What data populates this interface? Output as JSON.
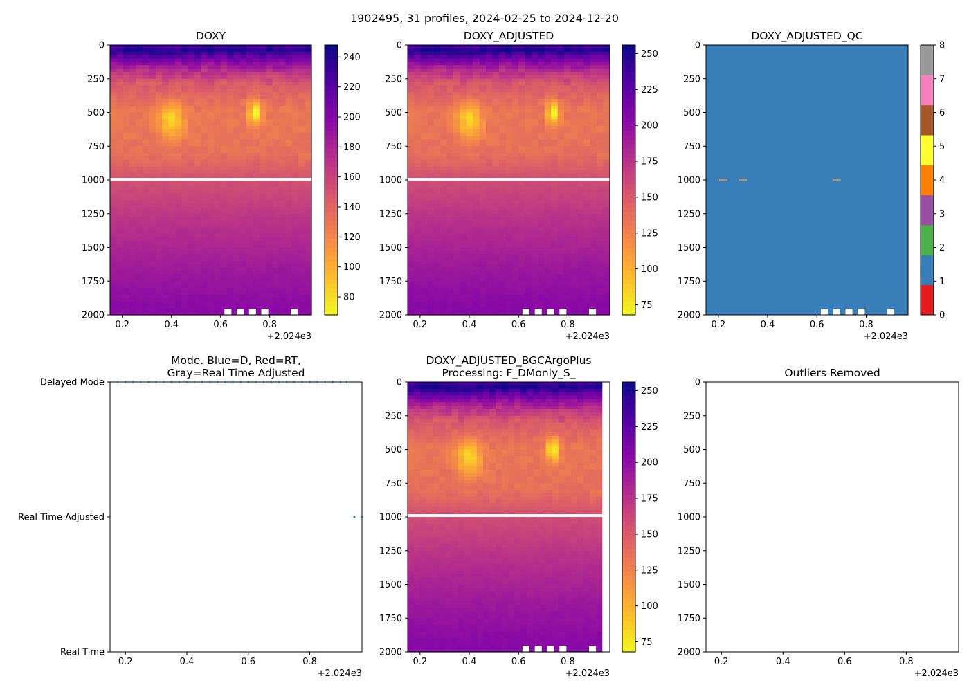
{
  "figure_title": "1902495, 31 profiles, 2024-02-25 to 2024-12-20",
  "x_offset_label": "+2.024e3",
  "chart_data": [
    {
      "id": "doxy",
      "type": "heatmap",
      "title": "DOXY",
      "xlim": [
        0.15,
        0.97
      ],
      "ylim": [
        2000,
        0
      ],
      "xticks": [
        {
          "v": 0.2,
          "label": "0.2"
        },
        {
          "v": 0.4,
          "label": "0.4"
        },
        {
          "v": 0.6,
          "label": "0.6"
        },
        {
          "v": 0.8,
          "label": "0.8"
        }
      ],
      "yticks": [
        {
          "v": 0,
          "label": "0"
        },
        {
          "v": 250,
          "label": "250"
        },
        {
          "v": 500,
          "label": "500"
        },
        {
          "v": 750,
          "label": "750"
        },
        {
          "v": 1000,
          "label": "1000"
        },
        {
          "v": 1250,
          "label": "1250"
        },
        {
          "v": 1500,
          "label": "1500"
        },
        {
          "v": 1750,
          "label": "1750"
        },
        {
          "v": 2000,
          "label": "2000"
        }
      ],
      "colormap": "plasma_r",
      "colorbar": {
        "vmin": 68,
        "vmax": 248,
        "ticks": [
          {
            "v": 80,
            "label": "80"
          },
          {
            "v": 100,
            "label": "100"
          },
          {
            "v": 120,
            "label": "120"
          },
          {
            "v": 140,
            "label": "140"
          },
          {
            "v": 160,
            "label": "160"
          },
          {
            "v": 180,
            "label": "180"
          },
          {
            "v": 200,
            "label": "200"
          },
          {
            "v": 220,
            "label": "220"
          },
          {
            "v": 240,
            "label": "240"
          }
        ]
      },
      "depth_profile": [
        {
          "d": 0,
          "v": 225
        },
        {
          "d": 40,
          "v": 240
        },
        {
          "d": 90,
          "v": 215
        },
        {
          "d": 180,
          "v": 175
        },
        {
          "d": 300,
          "v": 145
        },
        {
          "d": 500,
          "v": 128
        },
        {
          "d": 800,
          "v": 132
        },
        {
          "d": 1000,
          "v": 152
        },
        {
          "d": 1300,
          "v": 170
        },
        {
          "d": 1700,
          "v": 188
        },
        {
          "d": 2000,
          "v": 198
        }
      ],
      "low_oxygen_features": [
        {
          "x": 0.4,
          "d": 560,
          "sx": 0.05,
          "sd": 130,
          "amp": -45
        },
        {
          "x": 0.74,
          "d": 500,
          "sx": 0.025,
          "sd": 90,
          "amp": -60
        }
      ],
      "gap_depth": 995,
      "bottom_gaps_x": [
        0.63,
        0.68,
        0.73,
        0.78,
        0.9
      ]
    },
    {
      "id": "doxy_adjusted",
      "type": "heatmap",
      "title": "DOXY_ADJUSTED",
      "xlim": [
        0.15,
        0.97
      ],
      "ylim": [
        2000,
        0
      ],
      "xticks": [
        {
          "v": 0.2,
          "label": "0.2"
        },
        {
          "v": 0.4,
          "label": "0.4"
        },
        {
          "v": 0.6,
          "label": "0.6"
        },
        {
          "v": 0.8,
          "label": "0.8"
        }
      ],
      "yticks": [
        {
          "v": 0,
          "label": "0"
        },
        {
          "v": 250,
          "label": "250"
        },
        {
          "v": 500,
          "label": "500"
        },
        {
          "v": 750,
          "label": "750"
        },
        {
          "v": 1000,
          "label": "1000"
        },
        {
          "v": 1250,
          "label": "1250"
        },
        {
          "v": 1500,
          "label": "1500"
        },
        {
          "v": 1750,
          "label": "1750"
        },
        {
          "v": 2000,
          "label": "2000"
        }
      ],
      "colormap": "plasma_r",
      "colorbar": {
        "vmin": 68,
        "vmax": 256,
        "ticks": [
          {
            "v": 75,
            "label": "75"
          },
          {
            "v": 100,
            "label": "100"
          },
          {
            "v": 125,
            "label": "125"
          },
          {
            "v": 150,
            "label": "150"
          },
          {
            "v": 175,
            "label": "175"
          },
          {
            "v": 200,
            "label": "200"
          },
          {
            "v": 225,
            "label": "225"
          },
          {
            "v": 250,
            "label": "250"
          }
        ]
      },
      "depth_profile": [
        {
          "d": 0,
          "v": 232
        },
        {
          "d": 40,
          "v": 250
        },
        {
          "d": 90,
          "v": 222
        },
        {
          "d": 180,
          "v": 180
        },
        {
          "d": 300,
          "v": 150
        },
        {
          "d": 500,
          "v": 132
        },
        {
          "d": 800,
          "v": 136
        },
        {
          "d": 1000,
          "v": 158
        },
        {
          "d": 1300,
          "v": 176
        },
        {
          "d": 1700,
          "v": 195
        },
        {
          "d": 2000,
          "v": 205
        }
      ],
      "low_oxygen_features": [
        {
          "x": 0.4,
          "d": 560,
          "sx": 0.05,
          "sd": 130,
          "amp": -48
        },
        {
          "x": 0.74,
          "d": 500,
          "sx": 0.025,
          "sd": 90,
          "amp": -62
        }
      ],
      "gap_depth": 995,
      "bottom_gaps_x": [
        0.63,
        0.68,
        0.73,
        0.78,
        0.9
      ]
    },
    {
      "id": "doxy_adjusted_qc",
      "type": "heatmap",
      "title": "DOXY_ADJUSTED_QC",
      "xlim": [
        0.15,
        0.97
      ],
      "ylim": [
        2000,
        0
      ],
      "xticks": [
        {
          "v": 0.2,
          "label": "0.2"
        },
        {
          "v": 0.4,
          "label": "0.4"
        },
        {
          "v": 0.6,
          "label": "0.6"
        },
        {
          "v": 0.8,
          "label": "0.8"
        }
      ],
      "yticks": [
        {
          "v": 0,
          "label": "0"
        },
        {
          "v": 250,
          "label": "250"
        },
        {
          "v": 500,
          "label": "500"
        },
        {
          "v": 750,
          "label": "750"
        },
        {
          "v": 1000,
          "label": "1000"
        },
        {
          "v": 1250,
          "label": "1250"
        },
        {
          "v": 1500,
          "label": "1500"
        },
        {
          "v": 1750,
          "label": "1750"
        },
        {
          "v": 2000,
          "label": "2000"
        }
      ],
      "qc_value": 1,
      "qc_flags_at_1000": [
        {
          "x": 0.22,
          "value": 8
        },
        {
          "x": 0.3,
          "value": 8
        },
        {
          "x": 0.68,
          "value": 8
        }
      ],
      "bottom_gaps_x": [
        0.63,
        0.68,
        0.73,
        0.78,
        0.9
      ],
      "qc_colors": [
        "#e41a1c",
        "#377eb8",
        "#4daf4a",
        "#984ea3",
        "#ff7f00",
        "#ffff33",
        "#a65628",
        "#f781bf",
        "#999999"
      ],
      "colorbar": {
        "vmin": 0,
        "vmax": 8,
        "ticks": [
          {
            "v": 0,
            "label": "0"
          },
          {
            "v": 1,
            "label": "1"
          },
          {
            "v": 2,
            "label": "2"
          },
          {
            "v": 3,
            "label": "3"
          },
          {
            "v": 4,
            "label": "4"
          },
          {
            "v": 5,
            "label": "5"
          },
          {
            "v": 6,
            "label": "6"
          },
          {
            "v": 7,
            "label": "7"
          },
          {
            "v": 8,
            "label": "8"
          }
        ]
      }
    },
    {
      "id": "mode",
      "type": "scatter",
      "title_lines": [
        "Mode. Blue=D, Red=RT,",
        "Gray=Real Time Adjusted"
      ],
      "xlim": [
        0.15,
        0.97
      ],
      "xticks": [
        {
          "v": 0.2,
          "label": "0.2"
        },
        {
          "v": 0.4,
          "label": "0.4"
        },
        {
          "v": 0.6,
          "label": "0.6"
        },
        {
          "v": 0.8,
          "label": "0.8"
        }
      ],
      "yticks": [
        {
          "v": 2,
          "label": "Delayed Mode"
        },
        {
          "v": 1,
          "label": "Real Time Adjusted"
        },
        {
          "v": 0,
          "label": "Real Time"
        }
      ],
      "ylim": [
        0,
        2
      ],
      "color": "#1f77b4",
      "delayed_mode_x": [
        0.175,
        0.2,
        0.225,
        0.25,
        0.275,
        0.3,
        0.325,
        0.35,
        0.375,
        0.4,
        0.425,
        0.45,
        0.475,
        0.5,
        0.525,
        0.55,
        0.575,
        0.6,
        0.625,
        0.65,
        0.675,
        0.7,
        0.725,
        0.75,
        0.775,
        0.8,
        0.825,
        0.85,
        0.875,
        0.9,
        0.92
      ],
      "real_time_adjusted_x": [
        0.945,
        0.97
      ]
    },
    {
      "id": "bgcargoplus",
      "type": "heatmap",
      "title_lines": [
        "DOXY_ADJUSTED_BGCArgoPlus",
        "Processing: F_DMonly_S_"
      ],
      "xlim": [
        0.15,
        0.97
      ],
      "ylim": [
        2000,
        0
      ],
      "xticks": [
        {
          "v": 0.2,
          "label": "0.2"
        },
        {
          "v": 0.4,
          "label": "0.4"
        },
        {
          "v": 0.6,
          "label": "0.6"
        },
        {
          "v": 0.8,
          "label": "0.8"
        }
      ],
      "yticks": [
        {
          "v": 0,
          "label": "0"
        },
        {
          "v": 250,
          "label": "250"
        },
        {
          "v": 500,
          "label": "500"
        },
        {
          "v": 750,
          "label": "750"
        },
        {
          "v": 1000,
          "label": "1000"
        },
        {
          "v": 1250,
          "label": "1250"
        },
        {
          "v": 1500,
          "label": "1500"
        },
        {
          "v": 1750,
          "label": "1750"
        },
        {
          "v": 2000,
          "label": "2000"
        }
      ],
      "colormap": "plasma_r",
      "colorbar": {
        "vmin": 68,
        "vmax": 256,
        "ticks": [
          {
            "v": 75,
            "label": "75"
          },
          {
            "v": 100,
            "label": "100"
          },
          {
            "v": 125,
            "label": "125"
          },
          {
            "v": 150,
            "label": "150"
          },
          {
            "v": 175,
            "label": "175"
          },
          {
            "v": 200,
            "label": "200"
          },
          {
            "v": 225,
            "label": "225"
          },
          {
            "v": 250,
            "label": "250"
          }
        ]
      },
      "depth_profile": [
        {
          "d": 0,
          "v": 232
        },
        {
          "d": 40,
          "v": 250
        },
        {
          "d": 90,
          "v": 222
        },
        {
          "d": 180,
          "v": 180
        },
        {
          "d": 300,
          "v": 150
        },
        {
          "d": 500,
          "v": 132
        },
        {
          "d": 800,
          "v": 136
        },
        {
          "d": 1000,
          "v": 158
        },
        {
          "d": 1300,
          "v": 176
        },
        {
          "d": 1700,
          "v": 195
        },
        {
          "d": 2000,
          "v": 205
        }
      ],
      "low_oxygen_features": [
        {
          "x": 0.4,
          "d": 560,
          "sx": 0.05,
          "sd": 130,
          "amp": -48
        },
        {
          "x": 0.74,
          "d": 500,
          "sx": 0.025,
          "sd": 90,
          "amp": -62
        }
      ],
      "gap_depth": 990,
      "data_xmax": 0.94,
      "bottom_gaps_x": [
        0.63,
        0.68,
        0.73,
        0.78,
        0.9
      ]
    },
    {
      "id": "outliers",
      "type": "scatter",
      "title": "Outliers Removed",
      "xlim": [
        0.15,
        0.97
      ],
      "ylim": [
        2000,
        0
      ],
      "xticks": [
        {
          "v": 0.2,
          "label": "0.2"
        },
        {
          "v": 0.4,
          "label": "0.4"
        },
        {
          "v": 0.6,
          "label": "0.6"
        },
        {
          "v": 0.8,
          "label": "0.8"
        }
      ],
      "yticks": [
        {
          "v": 0,
          "label": "0"
        },
        {
          "v": 250,
          "label": "250"
        },
        {
          "v": 500,
          "label": "500"
        },
        {
          "v": 750,
          "label": "750"
        },
        {
          "v": 1000,
          "label": "1000"
        },
        {
          "v": 1250,
          "label": "1250"
        },
        {
          "v": 1500,
          "label": "1500"
        },
        {
          "v": 1750,
          "label": "1750"
        },
        {
          "v": 2000,
          "label": "2000"
        }
      ],
      "points": []
    }
  ]
}
